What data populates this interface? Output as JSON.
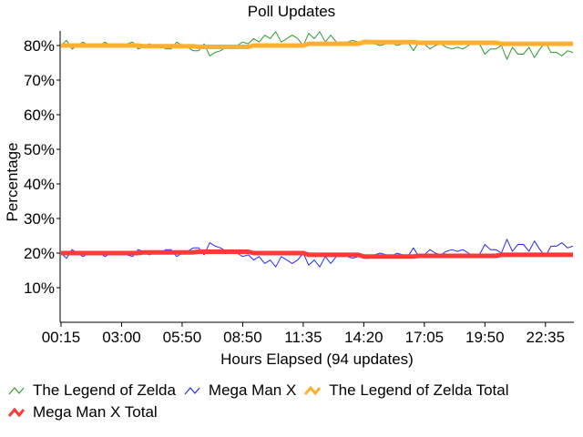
{
  "chart_data": {
    "type": "line",
    "title": "Poll Updates",
    "xlabel": "Hours Elapsed (94 updates)",
    "ylabel": "Percentage",
    "ylim": [
      0,
      84
    ],
    "yticks": [
      "10%",
      "20%",
      "30%",
      "40%",
      "50%",
      "60%",
      "70%",
      "80%"
    ],
    "ytick_values": [
      10,
      20,
      30,
      40,
      50,
      60,
      70,
      80
    ],
    "xticks": [
      "00:15",
      "03:00",
      "05:50",
      "08:50",
      "11:35",
      "14:20",
      "17:05",
      "19:50",
      "22:35"
    ],
    "xtick_indices": [
      0,
      11,
      22,
      33,
      44,
      55,
      66,
      77,
      88
    ],
    "legend_position": "bottom",
    "series": [
      {
        "name": "The Legend of Zelda",
        "color": "#2e9a2e",
        "width": 1,
        "values": [
          80,
          81.5,
          79,
          80,
          81,
          80,
          80.5,
          80,
          81,
          80,
          79.5,
          80,
          80.5,
          81,
          79,
          79.5,
          80.5,
          80,
          80,
          79,
          79,
          81,
          80,
          79.5,
          78.5,
          78.5,
          80.5,
          77,
          78,
          78.5,
          79.5,
          79,
          80,
          81,
          80.5,
          82,
          81,
          83,
          82,
          84,
          81,
          82,
          83,
          82,
          80,
          83.5,
          82,
          84,
          81,
          83,
          81,
          81,
          81,
          81.5,
          81,
          81.5,
          81.5,
          80.5,
          80,
          80.5,
          81,
          80,
          80.5,
          81,
          78.5,
          81,
          80.5,
          79,
          80,
          80.5,
          79.5,
          79,
          79.5,
          79,
          80,
          81,
          80.5,
          77.5,
          79,
          79,
          80,
          76,
          79.5,
          77.5,
          77.5,
          79.5,
          76.5,
          79,
          81,
          78,
          78,
          77,
          78.5,
          78
        ]
      },
      {
        "name": "Mega Man X",
        "color": "#2828ff",
        "width": 1,
        "values": [
          20,
          18.5,
          21,
          20,
          19,
          20,
          19.5,
          20,
          19,
          20,
          20.5,
          20,
          19.5,
          19,
          21,
          20.5,
          19.5,
          20,
          20,
          21,
          21,
          19,
          20,
          20.5,
          21.5,
          21.5,
          19.5,
          23,
          22,
          21.5,
          20.5,
          21,
          20,
          19,
          19.5,
          18,
          19,
          17,
          18,
          16,
          19,
          18,
          17,
          18,
          20,
          16.5,
          18,
          16,
          19,
          17,
          19,
          19,
          19,
          18.5,
          19,
          18.5,
          18.5,
          19.5,
          20,
          19.5,
          19,
          20,
          19.5,
          19,
          21.5,
          19,
          19.5,
          21,
          20,
          19.5,
          20.5,
          21,
          20.5,
          21,
          20,
          19,
          19.5,
          22.5,
          21,
          21,
          20,
          24,
          20.5,
          22.5,
          22.5,
          20.5,
          23.5,
          21,
          19,
          22,
          22,
          23,
          21.5,
          22
        ]
      },
      {
        "name": "The Legend of Zelda Total",
        "color": "#ffb030",
        "width": 5,
        "values": [
          80,
          80,
          80,
          80,
          80,
          80,
          80,
          80,
          80,
          80,
          80,
          80,
          80,
          80,
          80,
          79.8,
          79.8,
          79.8,
          79.8,
          79.8,
          79.8,
          79.8,
          79.8,
          79.8,
          79.8,
          79.6,
          79.6,
          79.6,
          79.6,
          79.6,
          79.6,
          79.6,
          79.6,
          79.6,
          79.6,
          80,
          80,
          80,
          80,
          80,
          80,
          80,
          80,
          80,
          80,
          80.5,
          80.5,
          80.5,
          80.5,
          80.5,
          80.5,
          80.5,
          80.5,
          80.5,
          80.5,
          81,
          81,
          81,
          81,
          81,
          81,
          81,
          81,
          81,
          81,
          80.8,
          80.8,
          80.8,
          80.8,
          80.8,
          80.8,
          80.8,
          80.8,
          80.8,
          80.8,
          80.8,
          80.8,
          80.8,
          80.8,
          80.8,
          80.5,
          80.5,
          80.5,
          80.5,
          80.5,
          80.5,
          80.5,
          80.5,
          80.5,
          80.5,
          80.5,
          80.5,
          80.5,
          80.5
        ]
      },
      {
        "name": "Mega Man X Total",
        "color": "#ff3838",
        "width": 5,
        "values": [
          20,
          20,
          20,
          20,
          20,
          20,
          20,
          20,
          20,
          20,
          20,
          20,
          20,
          20,
          20,
          20.2,
          20.2,
          20.2,
          20.2,
          20.2,
          20.2,
          20.2,
          20.2,
          20.2,
          20.2,
          20.4,
          20.4,
          20.4,
          20.4,
          20.4,
          20.4,
          20.4,
          20.4,
          20.4,
          20.4,
          20,
          20,
          20,
          20,
          20,
          20,
          20,
          20,
          20,
          20,
          19.5,
          19.5,
          19.5,
          19.5,
          19.5,
          19.5,
          19.5,
          19.5,
          19.5,
          19.5,
          19,
          19,
          19,
          19,
          19,
          19,
          19,
          19,
          19,
          19,
          19.2,
          19.2,
          19.2,
          19.2,
          19.2,
          19.2,
          19.2,
          19.2,
          19.2,
          19.2,
          19.2,
          19.2,
          19.2,
          19.2,
          19.2,
          19.5,
          19.5,
          19.5,
          19.5,
          19.5,
          19.5,
          19.5,
          19.5,
          19.5,
          19.5,
          19.5,
          19.5,
          19.5,
          19.5
        ]
      }
    ]
  }
}
